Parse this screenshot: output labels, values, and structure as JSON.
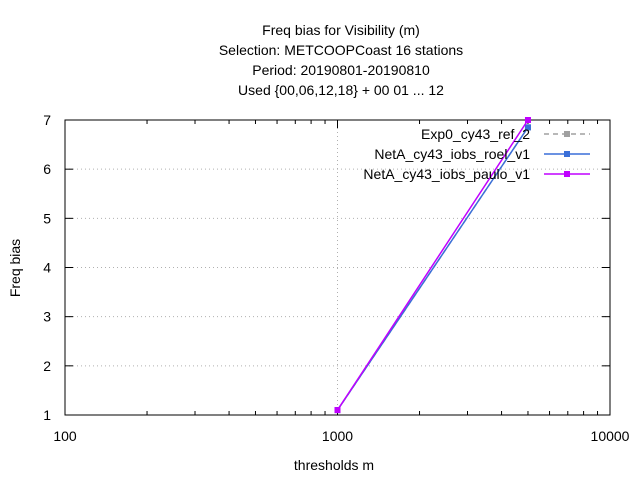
{
  "chart_data": {
    "type": "line",
    "title_lines": [
      "Freq bias  for Visibility (m)",
      "Selection: METCOOPCoast     16 stations",
      "Period: 20190801-20190810",
      "Used {00,06,12,18} + 00 01 ... 12"
    ],
    "xlabel": "thresholds m",
    "ylabel": "Freq bias",
    "x_scale": "log",
    "xlim": [
      100,
      10000
    ],
    "ylim": [
      1,
      7
    ],
    "x_ticks": [
      100,
      1000,
      10000
    ],
    "x_tick_labels": [
      "100",
      "1000",
      "10000"
    ],
    "y_ticks": [
      1,
      2,
      3,
      4,
      5,
      6,
      7
    ],
    "y_tick_labels": [
      "1",
      "2",
      "3",
      "4",
      "5",
      "6",
      "7"
    ],
    "grid": true,
    "legend_position": "top-right",
    "series": [
      {
        "name": "Exp0_cy43_ref_2",
        "color": "#a0a0a0",
        "dashed": true,
        "x": [
          1000,
          5000
        ],
        "y": [
          1.1,
          6.85
        ]
      },
      {
        "name": "NetA_cy43_iobs_roel_v1",
        "color": "#3a6fd8",
        "dashed": false,
        "x": [
          1000,
          5000
        ],
        "y": [
          1.1,
          6.85
        ]
      },
      {
        "name": "NetA_cy43_iobs_paulo_v1",
        "color": "#c000ff",
        "dashed": false,
        "x": [
          1000,
          5000
        ],
        "y": [
          1.1,
          7.0
        ]
      }
    ]
  }
}
